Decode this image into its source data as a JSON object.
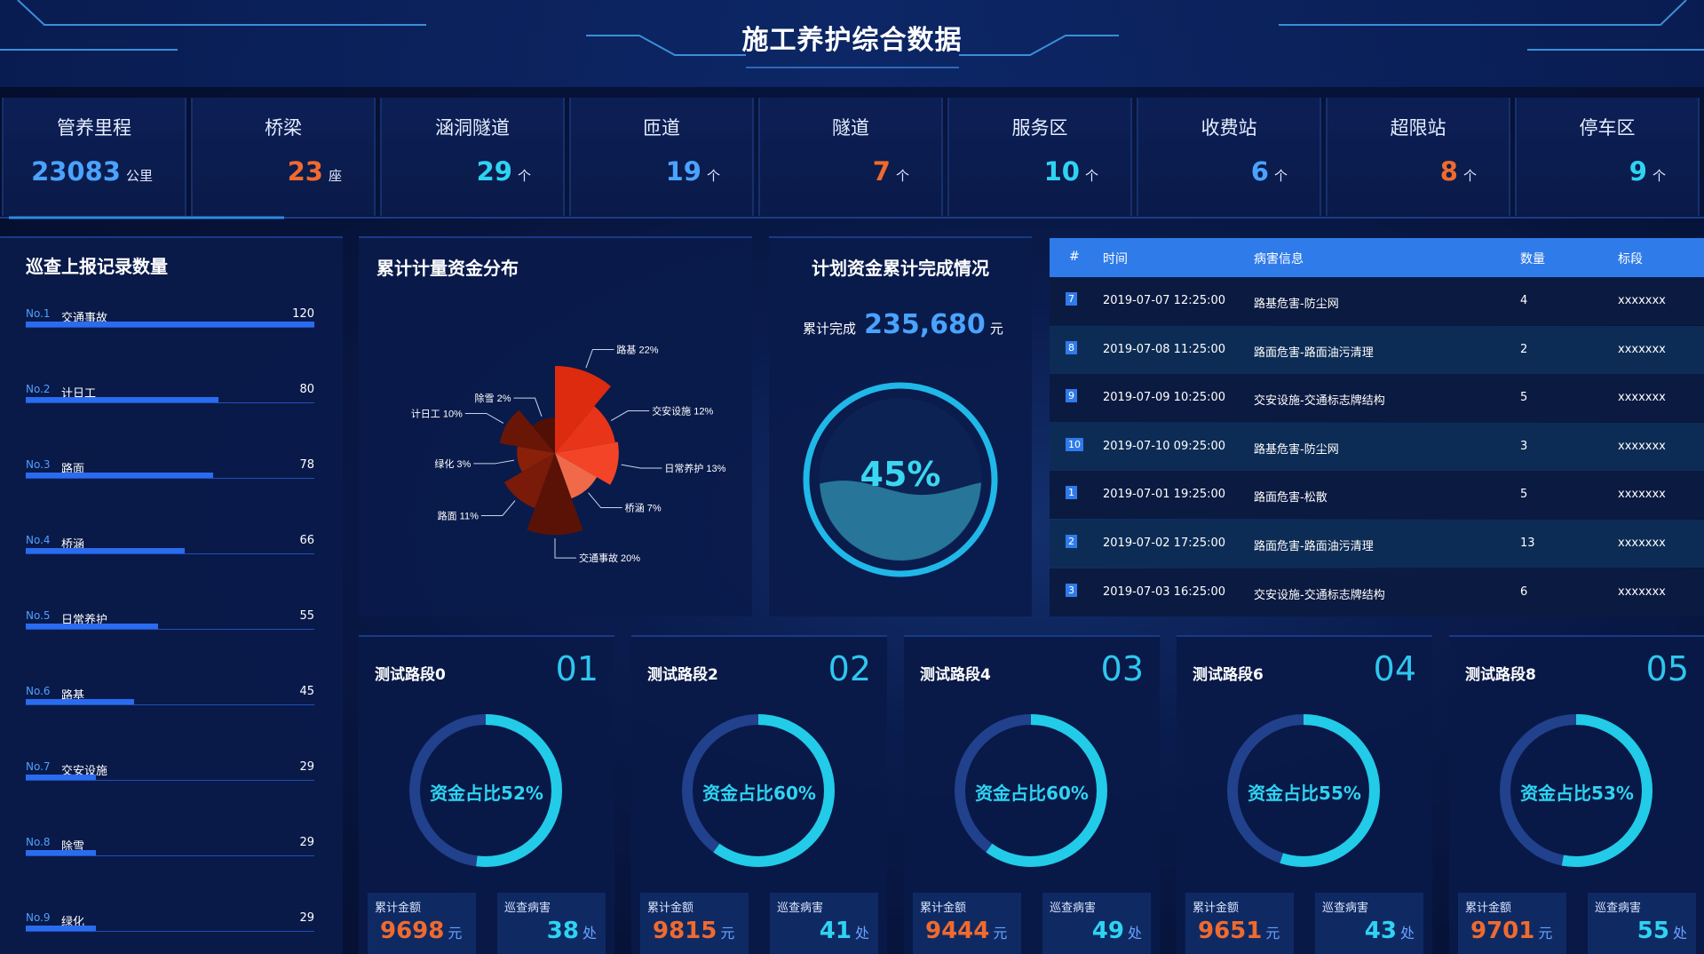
{
  "title": "施工养护综合数据",
  "stats": [
    {
      "label": "管养里程",
      "value": "23083",
      "unit": "公里",
      "color": "#4aa3ff"
    },
    {
      "label": "桥梁",
      "value": "23",
      "unit": "座",
      "color": "#f06a2e"
    },
    {
      "label": "涵洞隧道",
      "value": "29",
      "unit": "个",
      "color": "#2fd3f2"
    },
    {
      "label": "匝道",
      "value": "19",
      "unit": "个",
      "color": "#4aa3ff"
    },
    {
      "label": "隧道",
      "value": "7",
      "unit": "个",
      "color": "#f06a2e"
    },
    {
      "label": "服务区",
      "value": "10",
      "unit": "个",
      "color": "#2fd3f2"
    },
    {
      "label": "收费站",
      "value": "6",
      "unit": "个",
      "color": "#4aa3ff"
    },
    {
      "label": "超限站",
      "value": "8",
      "unit": "个",
      "color": "#f06a2e"
    },
    {
      "label": "停车区",
      "value": "9",
      "unit": "个",
      "color": "#2fd3f2"
    }
  ],
  "patrol": {
    "title": "巡查上报记录数量",
    "max": 120,
    "items": [
      {
        "no": "No.1",
        "name": "交通事故",
        "value": 120
      },
      {
        "no": "No.2",
        "name": "计日工",
        "value": 80
      },
      {
        "no": "No.3",
        "name": "路面",
        "value": 78
      },
      {
        "no": "No.4",
        "name": "桥涵",
        "value": 66
      },
      {
        "no": "No.5",
        "name": "日常养护",
        "value": 55
      },
      {
        "no": "No.6",
        "name": "路基",
        "value": 45
      },
      {
        "no": "No.7",
        "name": "交安设施",
        "value": 29
      },
      {
        "no": "No.8",
        "name": "除雪",
        "value": 29
      },
      {
        "no": "No.9",
        "name": "绿化",
        "value": 29
      }
    ]
  },
  "fund": {
    "title": "累计计量资金分布"
  },
  "chart_data": {
    "type": "pie",
    "variant": "rose",
    "categories": [
      "路基",
      "交安设施",
      "日常养护",
      "桥涵",
      "交通事故",
      "路面",
      "绿化",
      "计日工",
      "除雪"
    ],
    "values": [
      22,
      12,
      13,
      7,
      20,
      11,
      3,
      10,
      2
    ],
    "labels": [
      "路基 22%",
      "交安设施 12%",
      "日常养护 13%",
      "桥涵 7%",
      "交通事故 20%",
      "路面 11%",
      "绿化 3%",
      "计日工 10%",
      "除雪 2%"
    ],
    "colors": [
      "#dd2b10",
      "#e83418",
      "#f44428",
      "#f06a4a",
      "#5a1206",
      "#7a1a08",
      "#8a2008",
      "#6a1606",
      "#501004"
    ]
  },
  "plan": {
    "title": "计划资金累计完成情况",
    "label": "累计完成",
    "value": "235,680",
    "unit": "元",
    "percent_text": "45%",
    "percent": 45
  },
  "table": {
    "headers": [
      "#",
      "时间",
      "病害信息",
      "数量",
      "标段"
    ],
    "rows": [
      {
        "idx": "7",
        "time": "2019-07-07 12:25:00",
        "info": "路基危害-防尘网",
        "qty": "4",
        "seg": "xxxxxxx"
      },
      {
        "idx": "8",
        "time": "2019-07-08 11:25:00",
        "info": "路面危害-路面油污清理",
        "qty": "2",
        "seg": "xxxxxxx"
      },
      {
        "idx": "9",
        "time": "2019-07-09 10:25:00",
        "info": "交安设施-交通标志牌结构",
        "qty": "5",
        "seg": "xxxxxxx"
      },
      {
        "idx": "10",
        "time": "2019-07-10 09:25:00",
        "info": "路基危害-防尘网",
        "qty": "3",
        "seg": "xxxxxxx"
      },
      {
        "idx": "1",
        "time": "2019-07-01 19:25:00",
        "info": "路面危害-松散",
        "qty": "5",
        "seg": "xxxxxxx"
      },
      {
        "idx": "2",
        "time": "2019-07-02 17:25:00",
        "info": "路面危害-路面油污清理",
        "qty": "13",
        "seg": "xxxxxxx"
      },
      {
        "idx": "3",
        "time": "2019-07-03 16:25:00",
        "info": "交安设施-交通标志牌结构",
        "qty": "6",
        "seg": "xxxxxxx"
      }
    ]
  },
  "segments": [
    {
      "name": "测试路段0",
      "num": "01",
      "ratio_text": "资金占比52%",
      "ratio": 52,
      "amount_label": "累计金额",
      "amount": "9698",
      "amount_unit": "元",
      "patrol_label": "巡查病害",
      "patrol": "38",
      "patrol_unit": "处"
    },
    {
      "name": "测试路段2",
      "num": "02",
      "ratio_text": "资金占比60%",
      "ratio": 60,
      "amount_label": "累计金额",
      "amount": "9815",
      "amount_unit": "元",
      "patrol_label": "巡查病害",
      "patrol": "41",
      "patrol_unit": "处"
    },
    {
      "name": "测试路段4",
      "num": "03",
      "ratio_text": "资金占比60%",
      "ratio": 60,
      "amount_label": "累计金额",
      "amount": "9444",
      "amount_unit": "元",
      "patrol_label": "巡查病害",
      "patrol": "49",
      "patrol_unit": "处"
    },
    {
      "name": "测试路段6",
      "num": "04",
      "ratio_text": "资金占比55%",
      "ratio": 55,
      "amount_label": "累计金额",
      "amount": "9651",
      "amount_unit": "元",
      "patrol_label": "巡查病害",
      "patrol": "43",
      "patrol_unit": "处"
    },
    {
      "name": "测试路段8",
      "num": "05",
      "ratio_text": "资金占比53%",
      "ratio": 53,
      "amount_label": "累计金额",
      "amount": "9701",
      "amount_unit": "元",
      "patrol_label": "巡查病害",
      "patrol": "55",
      "patrol_unit": "处"
    }
  ]
}
